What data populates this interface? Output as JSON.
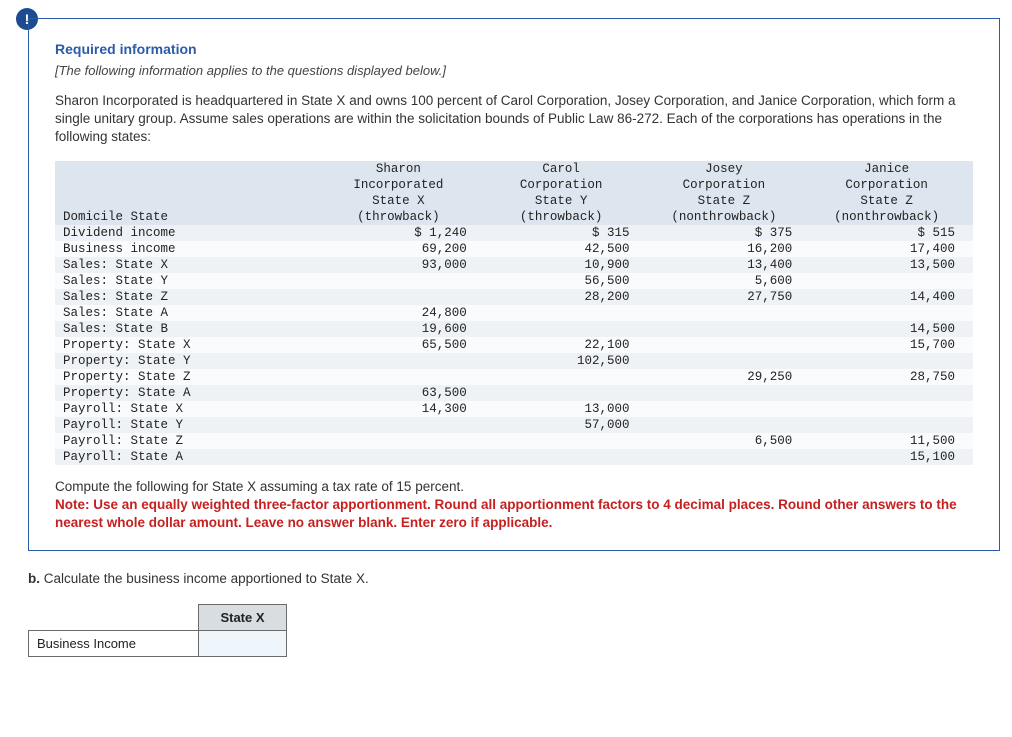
{
  "badge_symbol": "!",
  "card": {
    "title": "Required information",
    "italic": "[The following information applies to the questions displayed below.]",
    "body": "Sharon Incorporated is headquartered in State X and owns 100 percent of Carol Corporation, Josey Corporation, and Janice Corporation, which form a single unitary group. Assume sales operations are within the solicitation bounds of Public Law 86-272. Each of the corporations has operations in the following states:",
    "compute_line": "Compute the following for State X assuming a tax rate of 15 percent.",
    "red_note": "Note: Use an equally weighted three-factor apportionment. Round all apportionment factors to 4 decimal places. Round other answers to the nearest whole dollar amount. Leave no answer blank. Enter zero if applicable."
  },
  "table": {
    "font_family": "Courier New, monospace",
    "header_rows": [
      {
        "label": "",
        "c1": "Sharon",
        "c2": "Carol",
        "c3": "Josey",
        "c4": "Janice"
      },
      {
        "label": "",
        "c1": "Incorporated",
        "c2": "Corporation",
        "c3": "Corporation",
        "c4": "Corporation"
      },
      {
        "label": "",
        "c1": "State X",
        "c2": "State Y",
        "c3": "State Z",
        "c4": "State Z"
      },
      {
        "label": "Domicile State",
        "c1": "(throwback)",
        "c2": "(throwback)",
        "c3": "(nonthrowback)",
        "c4": "(nonthrowback)"
      }
    ],
    "rows": [
      {
        "label": "Dividend income",
        "c1": "$ 1,240",
        "c2": "$ 315",
        "c3": "$ 375",
        "c4": "$ 515"
      },
      {
        "label": "Business income",
        "c1": "69,200",
        "c2": "42,500",
        "c3": "16,200",
        "c4": "17,400"
      },
      {
        "label": "Sales: State X",
        "c1": "93,000",
        "c2": "10,900",
        "c3": "13,400",
        "c4": "13,500"
      },
      {
        "label": "Sales: State Y",
        "c1": "",
        "c2": "56,500",
        "c3": "5,600",
        "c4": ""
      },
      {
        "label": "Sales: State Z",
        "c1": "",
        "c2": "28,200",
        "c3": "27,750",
        "c4": "14,400"
      },
      {
        "label": "Sales: State A",
        "c1": "24,800",
        "c2": "",
        "c3": "",
        "c4": ""
      },
      {
        "label": "Sales: State B",
        "c1": "19,600",
        "c2": "",
        "c3": "",
        "c4": "14,500"
      },
      {
        "label": "Property: State X",
        "c1": "65,500",
        "c2": "22,100",
        "c3": "",
        "c4": "15,700"
      },
      {
        "label": "Property: State Y",
        "c1": "",
        "c2": "102,500",
        "c3": "",
        "c4": ""
      },
      {
        "label": "Property: State Z",
        "c1": "",
        "c2": "",
        "c3": "29,250",
        "c4": "28,750"
      },
      {
        "label": "Property: State A",
        "c1": "63,500",
        "c2": "",
        "c3": "",
        "c4": ""
      },
      {
        "label": "Payroll: State X",
        "c1": "14,300",
        "c2": "13,000",
        "c3": "",
        "c4": ""
      },
      {
        "label": "Payroll: State Y",
        "c1": "",
        "c2": "57,000",
        "c3": "",
        "c4": ""
      },
      {
        "label": "Payroll: State Z",
        "c1": "",
        "c2": "",
        "c3": "6,500",
        "c4": "11,500"
      },
      {
        "label": "Payroll: State A",
        "c1": "",
        "c2": "",
        "c3": "",
        "c4": "15,100"
      }
    ],
    "colors": {
      "header_bg": "#dde6ef",
      "odd_bg": "#eef2f6",
      "even_bg": "#f9fbfd"
    }
  },
  "question_b": {
    "prefix": "b.",
    "text": " Calculate the business income apportioned to State X."
  },
  "answer_table": {
    "column_header": "State X",
    "row_label": "Business Income",
    "input_value": ""
  }
}
